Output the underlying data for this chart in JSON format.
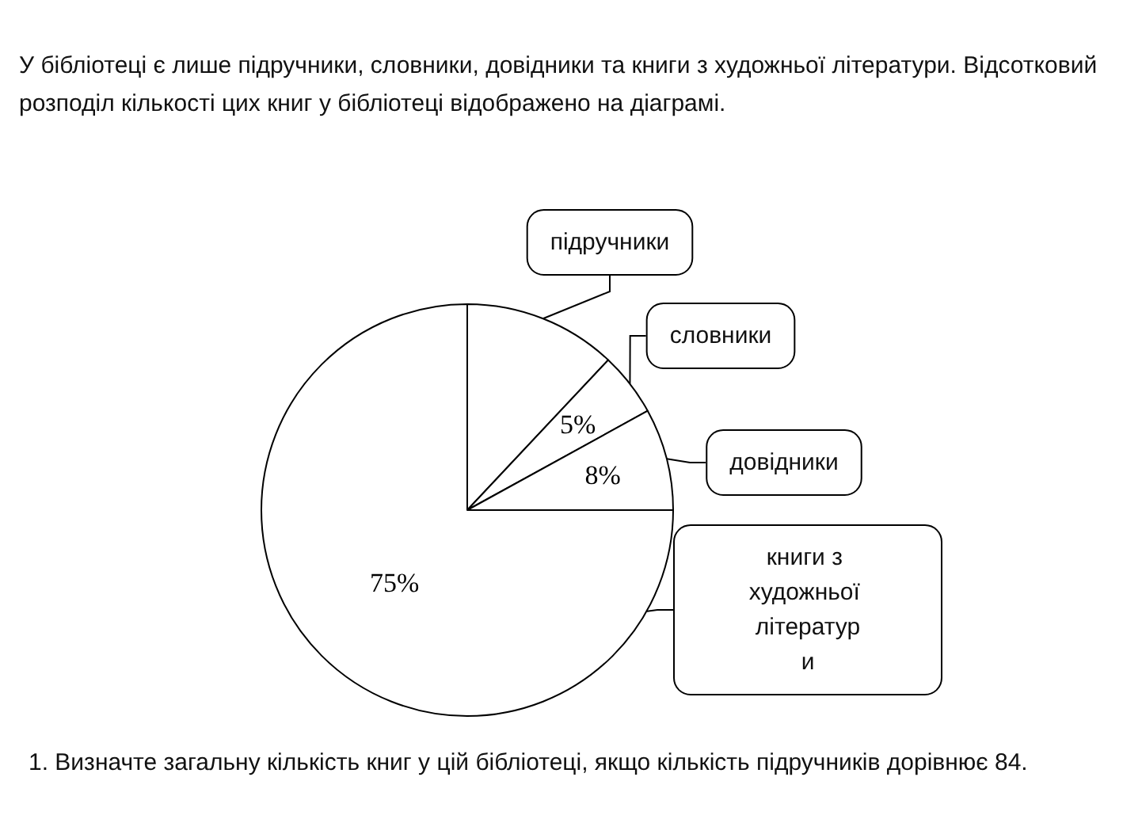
{
  "chart_data": {
    "type": "pie",
    "title": "У бібліотеці є лише підручники, словники, довідники та книги з художньої літератури. Відсотковий розподіл кількості цих книг у бібліотеці відображено на діаграмі.",
    "categories": [
      "підручники",
      "словники",
      "довідники",
      "книги з художньої літератури"
    ],
    "values": [
      12,
      5,
      8,
      75
    ],
    "value_labels": [
      null,
      "5%",
      "8%",
      "75%"
    ],
    "colors": [
      "#ffffff",
      "#ffffff",
      "#ffffff",
      "#ffffff"
    ],
    "legend": false,
    "annotations": [
      "1. Визначте загальну кількість книг у цій бібліотеці, якщо кількість підручників дорівнює 84."
    ]
  }
}
